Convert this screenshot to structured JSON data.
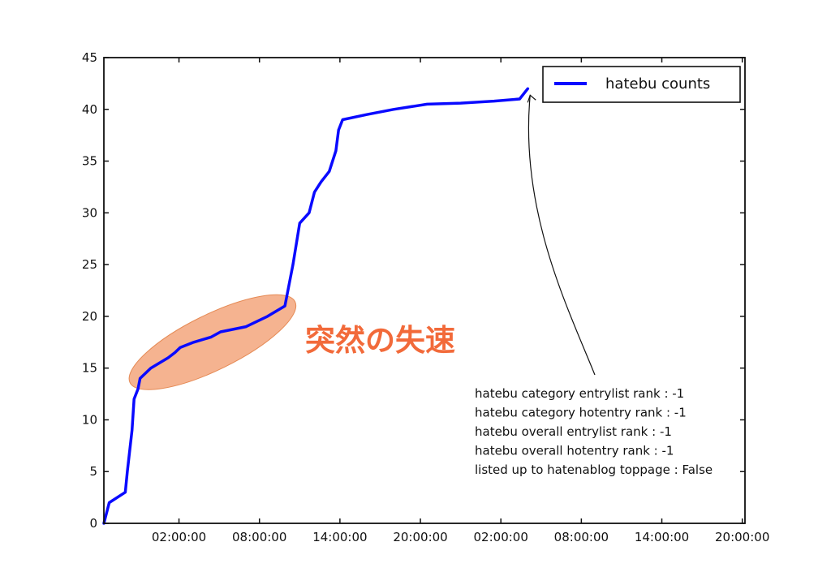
{
  "chart_data": {
    "type": "line",
    "series": [
      {
        "name": "hatebu counts",
        "color": "#0a0aff",
        "x_hours": [
          -5.6,
          -5.2,
          -4.0,
          -3.85,
          -3.5,
          -3.35,
          -3.05,
          -2.9,
          -2.1,
          -0.8,
          -0.3,
          0.1,
          1.1,
          2.4,
          3.1,
          5.0,
          6.6,
          7.9,
          8.5,
          9.0,
          9.7,
          10.1,
          10.6,
          11.2,
          11.7,
          11.9,
          12.2,
          14.0,
          16.0,
          18.5,
          21.0,
          23.5,
          25.4,
          26.0
        ],
        "y": [
          0,
          2,
          3,
          5,
          9,
          12,
          13,
          14,
          15,
          16,
          16.5,
          17,
          17.5,
          18,
          18.5,
          19,
          20,
          21,
          25,
          29,
          30,
          32,
          33,
          34,
          36,
          38,
          39,
          39.5,
          40,
          40.5,
          40.6,
          40.8,
          41,
          42
        ]
      }
    ],
    "x_tick_labels": [
      "02:00:00",
      "08:00:00",
      "14:00:00",
      "20:00:00",
      "02:00:00",
      "08:00:00",
      "14:00:00",
      "20:00:00"
    ],
    "x_tick_hours": [
      0,
      6,
      12,
      18,
      24,
      30,
      36,
      42
    ],
    "xlim_hours": [
      -5.6,
      42.2
    ],
    "ylim": [
      0,
      45
    ],
    "y_ticks": [
      0,
      5,
      10,
      15,
      20,
      25,
      30,
      35,
      40,
      45
    ],
    "grid": false,
    "legend_position": "top-right",
    "highlight": {
      "color": "#f2a074",
      "x_range_hours": [
        -3.0,
        8.0
      ],
      "y_range": [
        14,
        21
      ]
    },
    "callout_text": "突然の失速",
    "annotation": {
      "arrow_to": {
        "x_hour": 26.0,
        "y": 42
      },
      "lines": [
        "hatebu category entrylist rank   : -1",
        "hatebu category hotentry rank  : -1",
        "hatebu overall entrylist rank    : -1",
        "hatebu overall hotentry rank    : -1",
        "listed up to hatenablog toppage : False"
      ]
    }
  }
}
